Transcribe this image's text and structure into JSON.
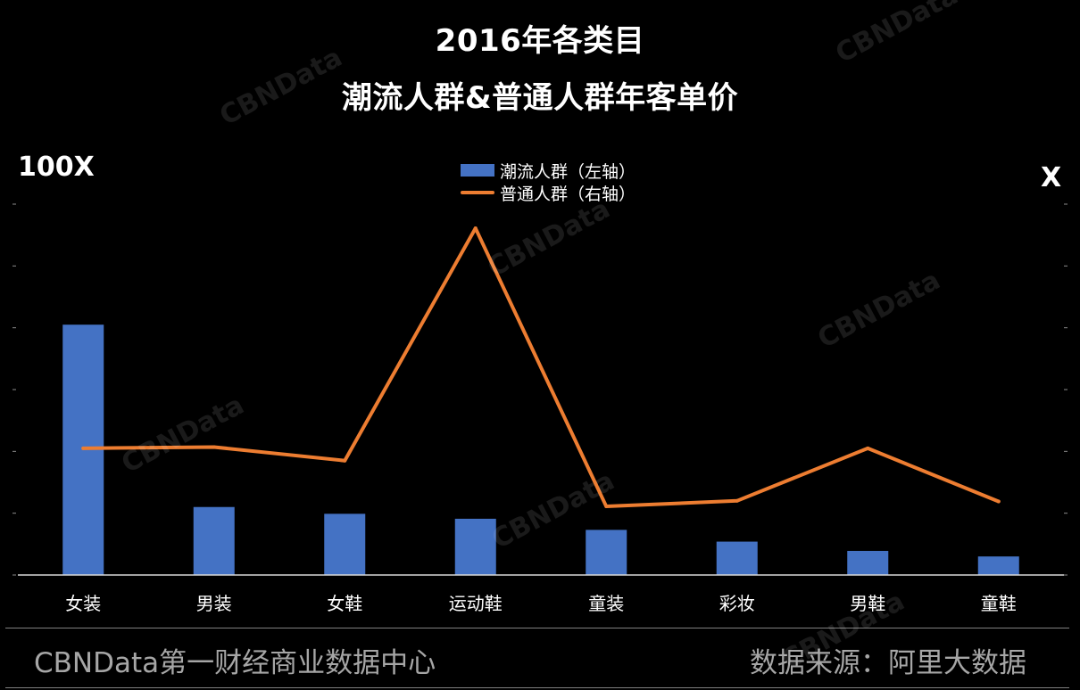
{
  "header": {
    "title_line1": "2016年各类目",
    "title_line2": "潮流人群&普通人群年客单价"
  },
  "axis_units": {
    "left": "100X",
    "right": "X"
  },
  "legend": {
    "bar_label": "潮流人群（左轴）",
    "line_label": "普通人群（右轴）"
  },
  "colors": {
    "bar": "#4472c4",
    "line": "#ed7d31",
    "background": "#000000",
    "footer_text": "#a6a6a6"
  },
  "footer": {
    "left": "CBNData第一财经商业数据中心",
    "right": "数据来源：阿里大数据"
  },
  "watermark": {
    "text": "CBNData"
  },
  "chart_data": {
    "type": "bar",
    "categories": [
      "女装",
      "男装",
      "女鞋",
      "运动鞋",
      "童装",
      "彩妆",
      "男鞋",
      "童鞋"
    ],
    "series": [
      {
        "name": "潮流人群（左轴）",
        "type": "bar",
        "axis": "left",
        "values": [
          4.05,
          1.1,
          0.99,
          0.91,
          0.73,
          0.54,
          0.39,
          0.3
        ]
      },
      {
        "name": "普通人群（右轴）",
        "type": "line",
        "axis": "right",
        "values": [
          2.05,
          2.07,
          1.85,
          5.61,
          1.11,
          1.2,
          2.05,
          1.19
        ]
      }
    ],
    "ylim_left": [
      0,
      6
    ],
    "ylim_right": [
      0,
      6
    ],
    "grid": false,
    "legend_position": "top-center"
  }
}
